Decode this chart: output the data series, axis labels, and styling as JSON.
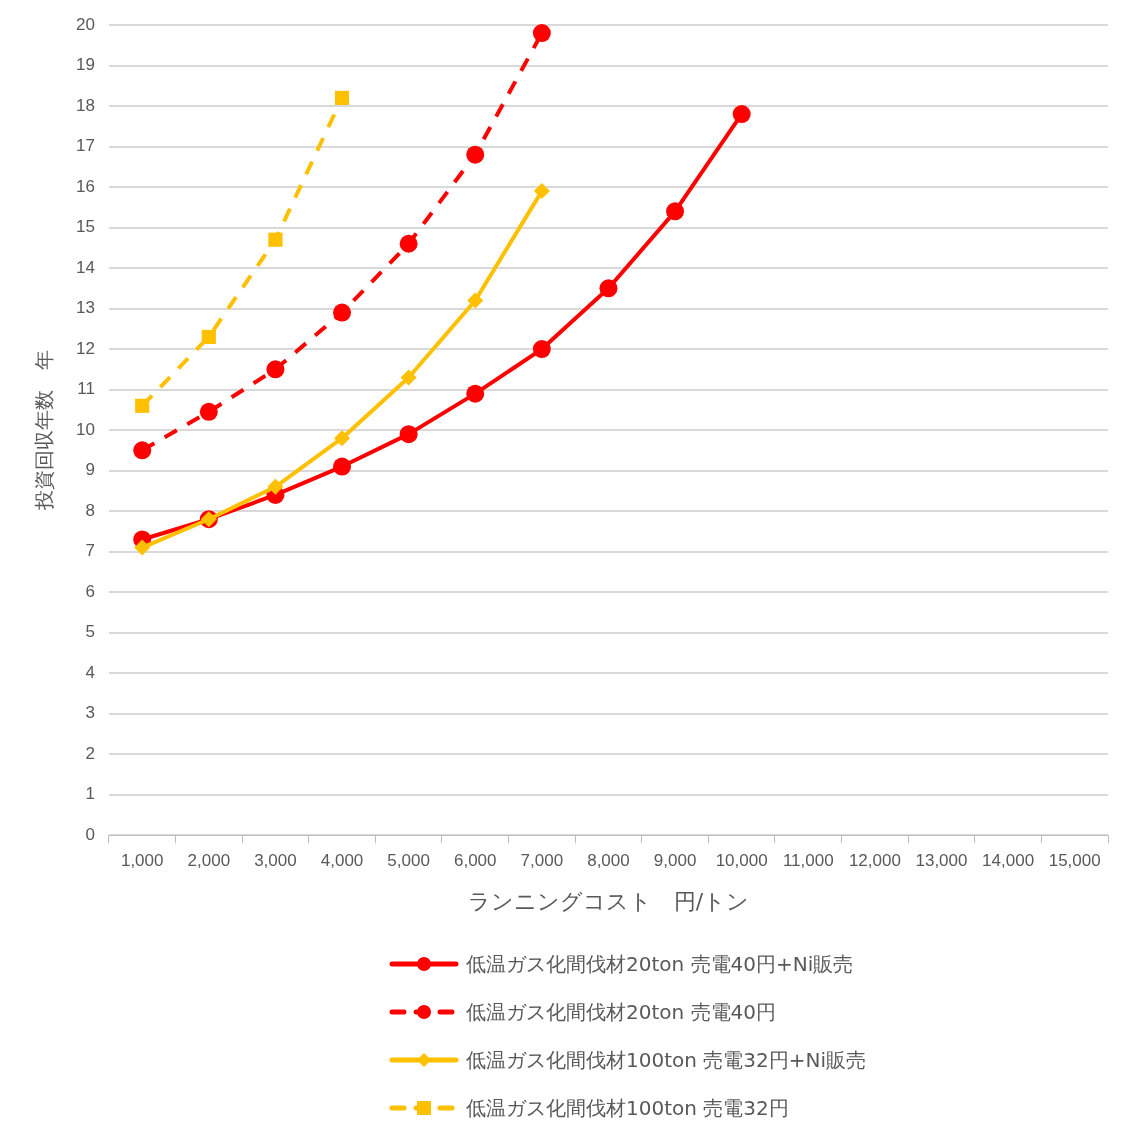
{
  "chart_data": {
    "type": "line",
    "xlabel": "ランニングコスト　円/トン",
    "ylabel": "投資回収年数　年",
    "categories": [
      "1,000",
      "2,000",
      "3,000",
      "4,000",
      "5,000",
      "6,000",
      "7,000",
      "8,000",
      "9,000",
      "10,000",
      "11,000",
      "12,000",
      "13,000",
      "14,000",
      "15,000"
    ],
    "series": [
      {
        "name": "低温ガス化間伐材20ton 売電40円+Ni販売",
        "color": "#ff0000",
        "marker": "circle",
        "line_style": "solid",
        "values": [
          7.3,
          7.8,
          8.4,
          9.1,
          9.9,
          10.9,
          12.0,
          13.5,
          15.4,
          17.8,
          null,
          null,
          null,
          null,
          null
        ]
      },
      {
        "name": "低温ガス化間伐材20ton 売電40円",
        "color": "#ff0000",
        "marker": "circle",
        "line_style": "dashed",
        "values": [
          9.5,
          10.45,
          11.5,
          12.9,
          14.6,
          16.8,
          19.8,
          null,
          null,
          null,
          null,
          null,
          null,
          null,
          null
        ]
      },
      {
        "name": "低温ガス化間伐材100ton 売電32円+Ni販売",
        "color": "#ffc000",
        "marker": "diamond",
        "line_style": "solid",
        "values": [
          7.1,
          7.8,
          8.6,
          9.8,
          11.3,
          13.2,
          15.9,
          null,
          null,
          null,
          null,
          null,
          null,
          null,
          null
        ]
      },
      {
        "name": "低温ガス化間伐材100ton 売電32円",
        "color": "#ffc000",
        "marker": "square",
        "line_style": "dashed",
        "values": [
          10.6,
          12.3,
          14.7,
          18.2,
          null,
          null,
          null,
          null,
          null,
          null,
          null,
          null,
          null,
          null,
          null
        ]
      }
    ],
    "ylim": [
      0,
      20
    ],
    "yticks": [
      0,
      1,
      2,
      3,
      4,
      5,
      6,
      7,
      8,
      9,
      10,
      11,
      12,
      13,
      14,
      15,
      16,
      17,
      18,
      19,
      20
    ],
    "grid": "y",
    "legend": "bottom"
  }
}
